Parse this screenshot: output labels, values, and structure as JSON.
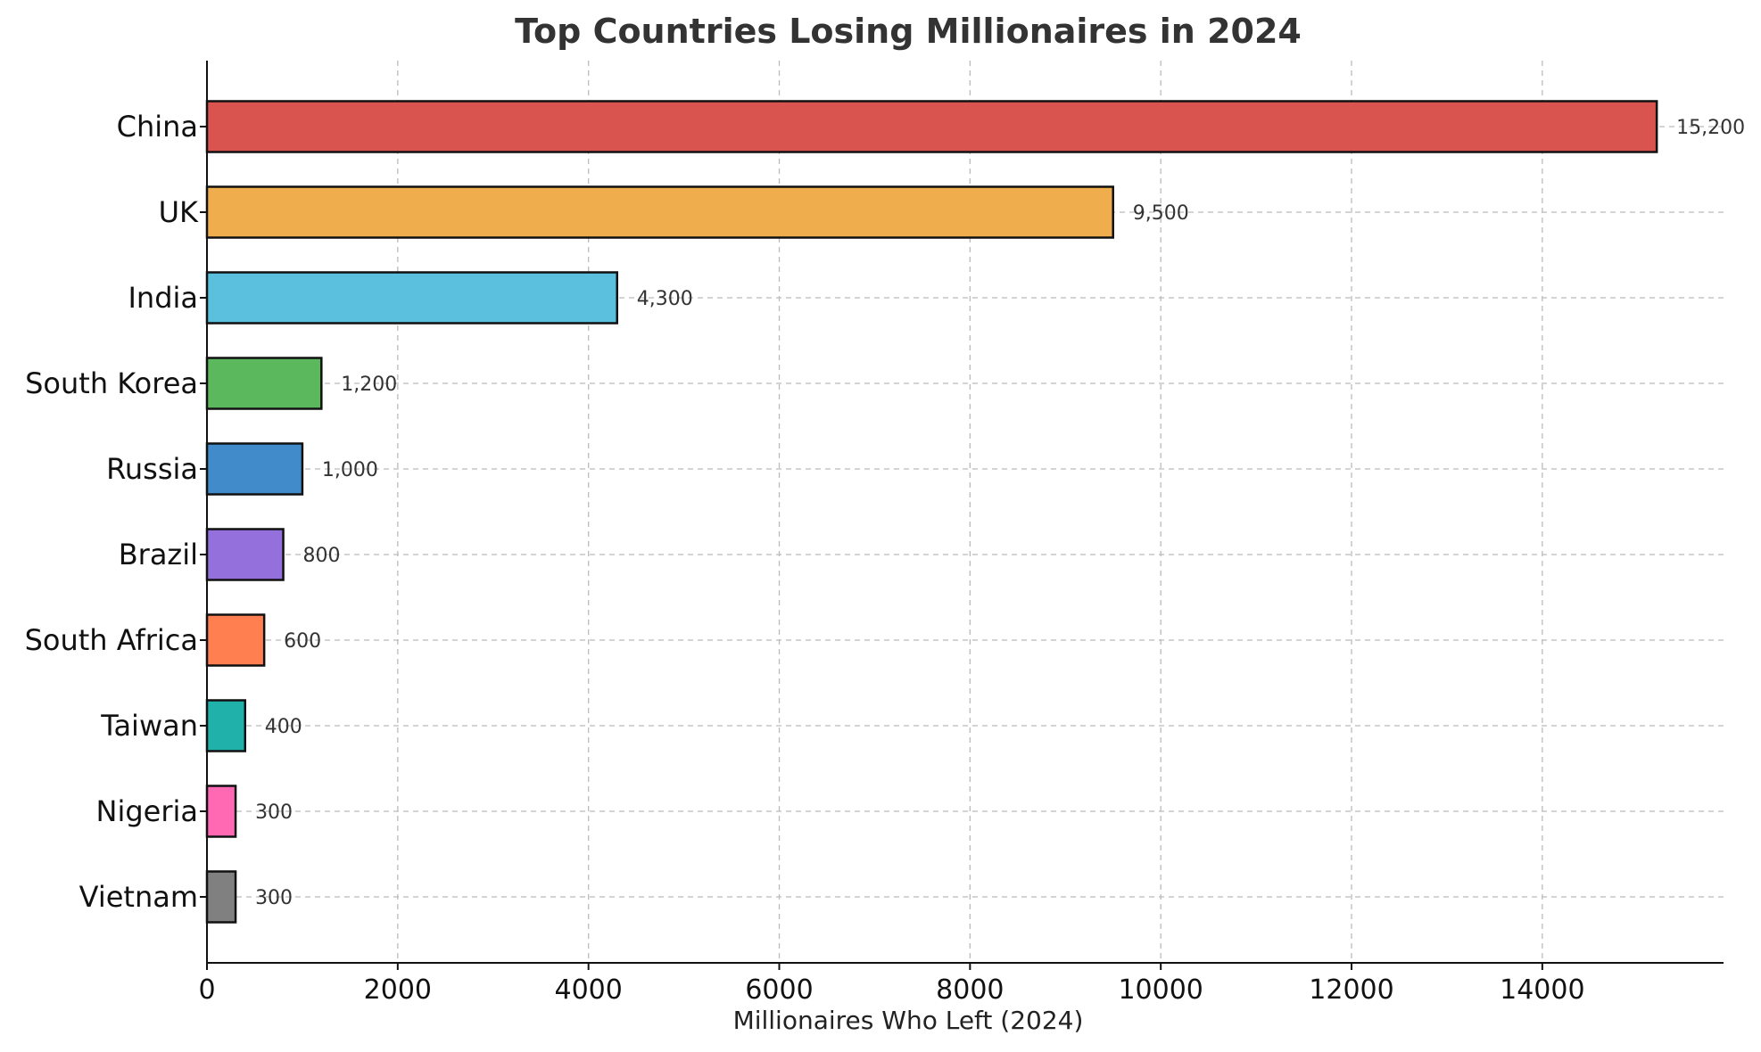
{
  "chart_data": {
    "type": "bar",
    "orientation": "horizontal",
    "title": "Top Countries Losing Millionaires in 2024",
    "xlabel": "Millionaires Who Left (2024)",
    "ylabel": "",
    "xlim": [
      0,
      15900
    ],
    "xticks": [
      0,
      2000,
      4000,
      6000,
      8000,
      10000,
      12000,
      14000
    ],
    "xtick_labels": [
      "0",
      "2000",
      "4000",
      "6000",
      "8000",
      "10000",
      "12000",
      "14000"
    ],
    "grid": true,
    "categories": [
      "China",
      "UK",
      "India",
      "South Korea",
      "Russia",
      "Brazil",
      "South Africa",
      "Taiwan",
      "Nigeria",
      "Vietnam"
    ],
    "values": [
      15200,
      9500,
      4300,
      1200,
      1000,
      800,
      600,
      400,
      300,
      300
    ],
    "value_labels": [
      "15,200",
      "9,500",
      "4,300",
      "1,200",
      "1,000",
      "800",
      "600",
      "400",
      "300",
      "300"
    ],
    "colors": [
      "#d9534f",
      "#f0ad4e",
      "#5bc0de",
      "#5cb85c",
      "#428bca",
      "#9370db",
      "#ff7f50",
      "#20b2aa",
      "#ff69b4",
      "#808080"
    ]
  }
}
